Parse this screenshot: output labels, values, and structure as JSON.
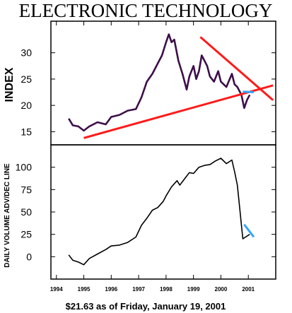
{
  "chart_data": [
    {
      "type": "line",
      "title": "ELECTRONIC TECHNOLOGY",
      "ylabel": "INDEX",
      "ylim": [
        12.5,
        36
      ],
      "yticks": [
        "15",
        "20",
        "25",
        "30"
      ],
      "colors": {
        "line": "#3d0f4a",
        "trend": "#ff1a1a",
        "target": "#33a6ff"
      },
      "series": [
        {
          "x": [
            1994.45,
            1994.6,
            1994.8,
            1995.0,
            1995.2,
            1995.5,
            1995.8,
            1996.0,
            1996.3,
            1996.6,
            1996.9,
            1997.1,
            1997.3,
            1997.5,
            1997.7,
            1997.85,
            1998.0,
            1998.1,
            1998.2,
            1998.3,
            1998.45,
            1998.6,
            1998.75,
            1998.85,
            1999.0,
            1999.1,
            1999.2,
            1999.3,
            1999.4,
            1999.5,
            1999.6,
            1999.75,
            1999.9,
            2000.0,
            2000.2,
            2000.4,
            2000.5,
            2000.6,
            2000.75,
            2000.85,
            2000.95,
            2001.05
          ],
          "y": [
            17.5,
            16.2,
            16.0,
            15.2,
            16.0,
            16.8,
            16.4,
            17.8,
            18.2,
            19.0,
            19.3,
            21.5,
            24.5,
            26.0,
            28.0,
            29.5,
            32.0,
            33.5,
            32.0,
            32.5,
            28.5,
            26.0,
            23.0,
            25.5,
            27.5,
            25.0,
            26.5,
            29.5,
            28.5,
            27.5,
            25.5,
            24.5,
            26.5,
            24.5,
            23.5,
            26.0,
            24.0,
            23.5,
            22.0,
            19.5,
            21.0,
            22.0
          ]
        }
      ],
      "trendlines": [
        {
          "name": "support",
          "x": [
            1995.0,
            2001.9
          ],
          "y": [
            13.8,
            23.8
          ]
        },
        {
          "name": "resistance",
          "x": [
            1999.25,
            2001.9
          ],
          "y": [
            33.0,
            21.0
          ]
        },
        {
          "name": "target",
          "x": [
            2000.8,
            2001.2
          ],
          "y": [
            22.6,
            22.5
          ]
        }
      ]
    },
    {
      "type": "line",
      "ylabel": "DAILY VOLUME ADV/DEC LINE",
      "ylim": [
        -25,
        125
      ],
      "yticks": [
        "0",
        "25",
        "50",
        "75",
        "100"
      ],
      "xlim": [
        1993.8,
        2002.0
      ],
      "xticks": [
        "1994",
        "1995",
        "1996",
        "1997",
        "1998",
        "1999",
        "2000",
        "2001"
      ],
      "colors": {
        "line": "#000000",
        "target": "#33a6ff"
      },
      "series": [
        {
          "x": [
            1994.45,
            1994.6,
            1994.8,
            1995.0,
            1995.2,
            1995.5,
            1995.8,
            1996.0,
            1996.3,
            1996.6,
            1996.9,
            1997.1,
            1997.3,
            1997.5,
            1997.7,
            1997.9,
            1998.0,
            1998.2,
            1998.4,
            1998.5,
            1998.7,
            1998.85,
            1999.0,
            1999.2,
            1999.4,
            1999.6,
            1999.8,
            2000.0,
            2000.2,
            2000.4,
            2000.5,
            2000.6,
            2000.7,
            2000.75,
            2000.8,
            2000.9,
            2001.05
          ],
          "y": [
            2,
            -4,
            -6,
            -9,
            -2,
            3,
            8,
            12,
            13,
            16,
            22,
            35,
            43,
            52,
            55,
            62,
            68,
            78,
            85,
            80,
            88,
            94,
            93,
            100,
            102,
            103,
            107,
            110,
            104,
            108,
            95,
            80,
            50,
            35,
            20,
            22,
            25
          ]
        }
      ],
      "trendlines": [
        {
          "name": "target",
          "x": [
            2000.85,
            2001.2
          ],
          "y": [
            36,
            22
          ]
        }
      ]
    }
  ],
  "caption": "$21.63 as of Friday, January 19, 2001"
}
